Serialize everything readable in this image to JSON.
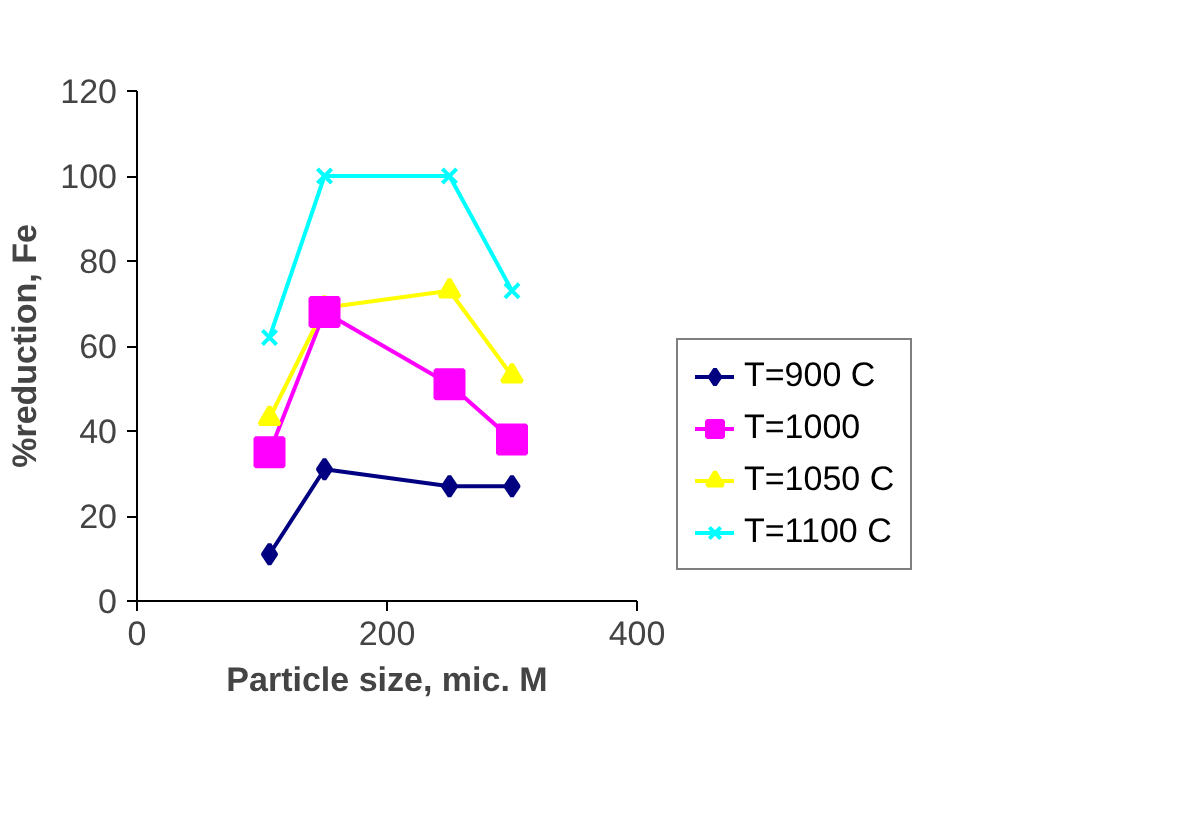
{
  "chart_data": {
    "type": "line",
    "xlabel": "Particle size, mic. M",
    "ylabel": "%reduction, Fe",
    "x": [
      106,
      150,
      250,
      300
    ],
    "xlim": [
      0,
      400
    ],
    "xticks": [
      0,
      200,
      400
    ],
    "ylim": [
      0,
      120
    ],
    "yticks": [
      0,
      20,
      40,
      60,
      80,
      100,
      120
    ],
    "legend": "right",
    "line_style": "solid",
    "series": [
      {
        "name": "T=900 C",
        "color": "#000080",
        "marker": "diamond",
        "values": [
          11,
          31,
          27,
          27
        ]
      },
      {
        "name": "T=1000",
        "color": "#ff00ff",
        "marker": "square",
        "values": [
          35,
          68,
          51,
          38
        ]
      },
      {
        "name": "T=1050 C",
        "color": "#ffff00",
        "marker": "triangle",
        "values": [
          43,
          69,
          73,
          53
        ]
      },
      {
        "name": "T=1100 C",
        "color": "#00ffff",
        "marker": "cross",
        "values": [
          62,
          100,
          100,
          73
        ]
      }
    ]
  }
}
